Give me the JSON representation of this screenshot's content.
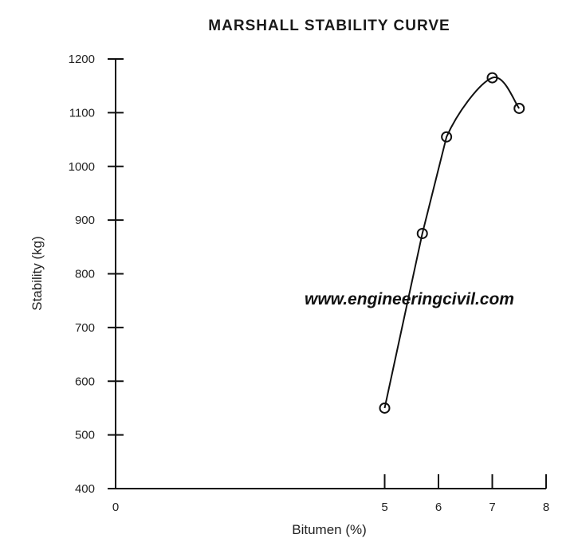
{
  "chart_data": {
    "type": "line",
    "title": "MARSHALL STABILITY CURVE",
    "xlabel": "Bitumen (%)",
    "ylabel": "Stability (kg)",
    "xlim": [
      0,
      8
    ],
    "ylim": [
      400,
      1200
    ],
    "x_ticks": [
      "0",
      "5",
      "6",
      "7",
      "8"
    ],
    "y_ticks": [
      "400",
      "500",
      "600",
      "700",
      "800",
      "900",
      "1000",
      "1100",
      "1200"
    ],
    "grid": false,
    "series": [
      {
        "x": [
          5.0,
          5.7,
          6.15,
          7.0,
          7.5
        ],
        "y": [
          550,
          875,
          1055,
          1165,
          1108
        ]
      }
    ],
    "annotation": "www.engineeringcivil.com"
  }
}
